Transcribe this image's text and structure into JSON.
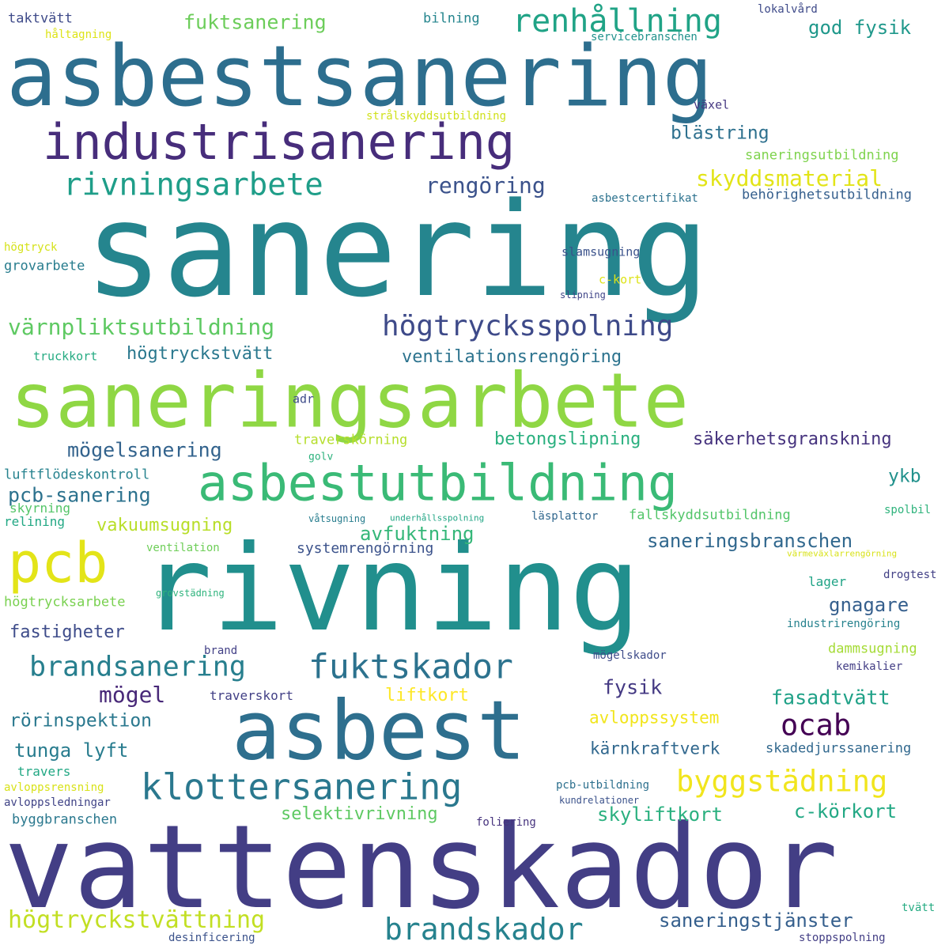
{
  "words": [
    {
      "text": "sanering",
      "color": "#25858e"
    },
    {
      "text": "vattenskador",
      "color": "#433e85"
    },
    {
      "text": "asbestsanering",
      "color": "#2d6e8e"
    },
    {
      "text": "rivning",
      "color": "#218f8d"
    },
    {
      "text": "saneringsarbete",
      "color": "#8fd744"
    },
    {
      "text": "asbest",
      "color": "#2e6f8e"
    },
    {
      "text": "industrisanering",
      "color": "#472d7b"
    },
    {
      "text": "asbestutbildning",
      "color": "#3aba76"
    },
    {
      "text": "pcb",
      "color": "#e3e418"
    },
    {
      "text": "klottersanering",
      "color": "#2a788e"
    },
    {
      "text": "renhållning",
      "color": "#20a386"
    },
    {
      "text": "rivningsarbete",
      "color": "#1f9e89"
    },
    {
      "text": "högtrycksspolning",
      "color": "#3e4a89"
    },
    {
      "text": "brandsanering",
      "color": "#277f8e"
    },
    {
      "text": "fuktskador",
      "color": "#2c728e"
    },
    {
      "text": "brandskador",
      "color": "#26828e"
    },
    {
      "text": "byggstädning",
      "color": "#f1e51d"
    },
    {
      "text": "ocab",
      "color": "#440154"
    },
    {
      "text": "värnpliktsutbildning",
      "color": "#5ec962"
    },
    {
      "text": "högtryckstvättning",
      "color": "#c2df23"
    },
    {
      "text": "skyddsmaterial",
      "color": "#e2e418"
    },
    {
      "text": "rengöring",
      "color": "#3b528b"
    },
    {
      "text": "fuktsanering",
      "color": "#6ccd5a"
    },
    {
      "text": "god fysik",
      "color": "#1f988b"
    },
    {
      "text": "blästring",
      "color": "#2d708e"
    },
    {
      "text": "högtryckstvätt",
      "color": "#2a788e"
    },
    {
      "text": "ventilationsrengöring",
      "color": "#2c738e"
    },
    {
      "text": "mögelsanering",
      "color": "#33638d"
    },
    {
      "text": "betongslipning",
      "color": "#2ab07f"
    },
    {
      "text": "säkerhetsgranskning",
      "color": "#46337e"
    },
    {
      "text": "pcb-sanering",
      "color": "#2c728e"
    },
    {
      "text": "avfuktning",
      "color": "#35b779"
    },
    {
      "text": "saneringsbranschen",
      "color": "#31688e"
    },
    {
      "text": "gnagare",
      "color": "#355f8d"
    },
    {
      "text": "fastigheter",
      "color": "#3e4c8a"
    },
    {
      "text": "mögel",
      "color": "#482878"
    },
    {
      "text": "fysik",
      "color": "#443983"
    },
    {
      "text": "fasadtvätt",
      "color": "#1fa187"
    },
    {
      "text": "liftkort",
      "color": "#fde725"
    },
    {
      "text": "avloppssystem",
      "color": "#f1e51d"
    },
    {
      "text": "rörinspektion",
      "color": "#2a788e"
    },
    {
      "text": "kärnkraftverk",
      "color": "#31688e"
    },
    {
      "text": "tunga lyft",
      "color": "#287c8e"
    },
    {
      "text": "skyliftkort",
      "color": "#2ab07f"
    },
    {
      "text": "selektivrivning",
      "color": "#5ec962"
    },
    {
      "text": "c-körkort",
      "color": "#22a884"
    },
    {
      "text": "saneringstjänster",
      "color": "#355f8d"
    },
    {
      "text": "vakuumsugning",
      "color": "#b8de29"
    },
    {
      "text": "ykb",
      "color": "#21918c"
    },
    {
      "text": "systemrengörning",
      "color": "#3b528b"
    },
    {
      "text": "skadedjurssanering",
      "color": "#31688e"
    },
    {
      "text": "luftflödeskontroll",
      "color": "#26828e"
    },
    {
      "text": "fallskyddsutbildning",
      "color": "#52c569"
    },
    {
      "text": "högtrycksarbete",
      "color": "#7ad151"
    },
    {
      "text": "grovarbete",
      "color": "#287d8e"
    },
    {
      "text": "traverskörning",
      "color": "#b5de2b"
    },
    {
      "text": "taktvätt",
      "color": "#3e4a89"
    },
    {
      "text": "bilning",
      "color": "#25858e"
    },
    {
      "text": "lokalvård",
      "color": "#3e4a89"
    },
    {
      "text": "håltagning",
      "color": "#dde318"
    },
    {
      "text": "servicebranschen",
      "color": "#20928c"
    },
    {
      "text": "växel",
      "color": "#453781"
    },
    {
      "text": "strålskyddsutbildning",
      "color": "#d0e11c"
    },
    {
      "text": "saneringsutbildning",
      "color": "#7fd34e"
    },
    {
      "text": "asbestcertifikat",
      "color": "#2c728e"
    },
    {
      "text": "behörighetsutbildning",
      "color": "#355f8d"
    },
    {
      "text": "högtryck",
      "color": "#d5e21a"
    },
    {
      "text": "slamsugning",
      "color": "#3b528b"
    },
    {
      "text": "c-kort",
      "color": "#dde318"
    },
    {
      "text": "slipning",
      "color": "#404588"
    },
    {
      "text": "truckkort",
      "color": "#25ab82"
    },
    {
      "text": "adr",
      "color": "#3e4c8a"
    },
    {
      "text": "golv",
      "color": "#2db27d"
    },
    {
      "text": "skyrning",
      "color": "#54c568"
    },
    {
      "text": "relining",
      "color": "#22a884"
    },
    {
      "text": "våtsugning",
      "color": "#287d8e"
    },
    {
      "text": "underhållsspolning",
      "color": "#21a585"
    },
    {
      "text": "läsplattor",
      "color": "#31688e"
    },
    {
      "text": "spolbil",
      "color": "#2eb37c"
    },
    {
      "text": "ventilation",
      "color": "#6ece58"
    },
    {
      "text": "värmeväxlarrengörning",
      "color": "#d8e219"
    },
    {
      "text": "grovstädning",
      "color": "#2eb37c"
    },
    {
      "text": "lager",
      "color": "#20a386"
    },
    {
      "text": "drogtest",
      "color": "#424086"
    },
    {
      "text": "industrirengöring",
      "color": "#26828e"
    },
    {
      "text": "brand",
      "color": "#424086"
    },
    {
      "text": "mögelskador",
      "color": "#3e4c8a"
    },
    {
      "text": "dammsugning",
      "color": "#a5db36"
    },
    {
      "text": "kemikalier",
      "color": "#433e85"
    },
    {
      "text": "traverskort",
      "color": "#424086"
    },
    {
      "text": "travers",
      "color": "#22a884"
    },
    {
      "text": "avloppsrensning",
      "color": "#d8e219"
    },
    {
      "text": "avloppsledningar",
      "color": "#414487"
    },
    {
      "text": "pcb-utbildning",
      "color": "#2d708e"
    },
    {
      "text": "kundrelationer",
      "color": "#3b528b"
    },
    {
      "text": "byggbranschen",
      "color": "#2a788e"
    },
    {
      "text": "foliering",
      "color": "#46337e"
    },
    {
      "text": "tvätt",
      "color": "#25ab82"
    },
    {
      "text": "desinficering",
      "color": "#3b528b"
    },
    {
      "text": "stoppspolning",
      "color": "#433e85"
    }
  ]
}
